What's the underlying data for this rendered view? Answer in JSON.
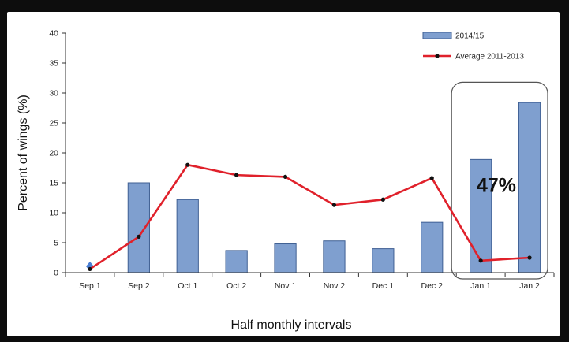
{
  "chart_data": {
    "type": "bar",
    "categories": [
      "Sep 1",
      "Sep 2",
      "Oct 1",
      "Oct 2",
      "Nov 1",
      "Nov 2",
      "Dec 1",
      "Dec 2",
      "Jan 1",
      "Jan 2"
    ],
    "series": [
      {
        "name": "2014/15",
        "type": "bar",
        "color": "#7f9fcf",
        "values": [
          0.4,
          15.0,
          12.2,
          3.7,
          4.8,
          5.3,
          4.0,
          8.4,
          18.9,
          28.4
        ]
      },
      {
        "name": "Average 2011-2013",
        "type": "line",
        "color": "#e0212b",
        "values": [
          0.6,
          6.0,
          18.0,
          16.3,
          16.0,
          11.3,
          12.2,
          15.8,
          2.0,
          2.5
        ]
      }
    ],
    "xlabel": "Half monthly intervals",
    "ylabel": "Percent of wings (%)",
    "ylim": [
      0,
      40
    ],
    "yticks": [
      0,
      5,
      10,
      15,
      20,
      25,
      30,
      35,
      40
    ],
    "grid": false,
    "legend": "top-right",
    "annotation": {
      "text": "47%",
      "highlight_categories": [
        "Jan 1",
        "Jan 2"
      ]
    },
    "first_point_marker_color": "#4a7fd4"
  }
}
